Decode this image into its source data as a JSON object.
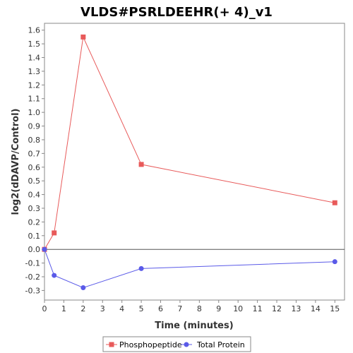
{
  "chart_data": {
    "type": "line",
    "title": "VLDS#PSRLDEEHR(+ 4)_v1",
    "xlabel": "Time (minutes)",
    "ylabel": "log2(dDAVP/Control)",
    "xlim": [
      0,
      15.5
    ],
    "ylim": [
      -0.37,
      1.65
    ],
    "x_ticks": [
      0,
      1,
      2,
      3,
      4,
      5,
      6,
      7,
      8,
      9,
      10,
      11,
      12,
      13,
      14,
      15
    ],
    "y_ticks": [
      -0.3,
      -0.2,
      -0.1,
      0.0,
      0.1,
      0.2,
      0.3,
      0.4,
      0.5,
      0.6,
      0.7,
      0.8,
      0.9,
      1.0,
      1.1,
      1.2,
      1.3,
      1.4,
      1.5,
      1.6
    ],
    "y_tick_labels": [
      "-0.3",
      "-0.2",
      "-0.1",
      "0.0",
      "0.1",
      "0.2",
      "0.3",
      "0.4",
      "0.5",
      "0.6",
      "0.7",
      "0.8",
      "0.9",
      "1.0",
      "1.1",
      "1.2",
      "1.3",
      "1.4",
      "1.5",
      "1.6"
    ],
    "grid": false,
    "zero_line": true,
    "legend_position": "bottom",
    "series": [
      {
        "name": "Phosphopeptide",
        "color": "#e85a5a",
        "marker": "square",
        "x": [
          0,
          0.5,
          2,
          5,
          15
        ],
        "y": [
          0.0,
          0.12,
          1.55,
          0.62,
          0.34
        ]
      },
      {
        "name": "Total Protein",
        "color": "#5a5ae8",
        "marker": "circle",
        "x": [
          0,
          0.5,
          2,
          5,
          15
        ],
        "y": [
          0.0,
          -0.19,
          -0.28,
          -0.14,
          -0.09
        ]
      }
    ]
  }
}
